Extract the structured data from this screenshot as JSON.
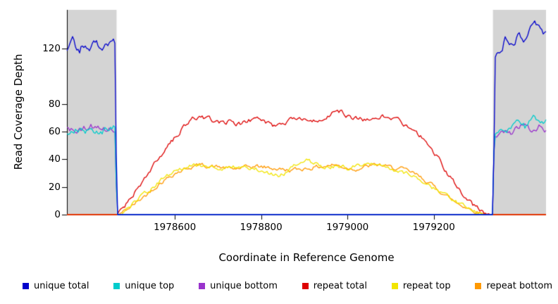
{
  "chart_data": {
    "type": "line",
    "title": "",
    "xlabel": "Coordinate in Reference Genome",
    "ylabel": "Read Coverage Depth",
    "xlim": [
      1978350,
      1979460
    ],
    "ylim": [
      0,
      148
    ],
    "xticks": [
      1978600,
      1978800,
      1979000,
      1979200
    ],
    "yticks": [
      0,
      20,
      40,
      60,
      80,
      120
    ],
    "grid": false,
    "legend_position": "bottom",
    "background": "#ffffff",
    "axis_color": "#000000",
    "shaded_regions": [
      {
        "x0": 1978350,
        "x1": 1978465,
        "color": "#d4d4d4"
      },
      {
        "x0": 1979337,
        "x1": 1979460,
        "color": "#d4d4d4"
      }
    ],
    "series": [
      {
        "name": "unique total",
        "color": "#0000cc",
        "noise": 3.0,
        "points": [
          [
            1978350,
            121
          ],
          [
            1978365,
            126
          ],
          [
            1978378,
            119
          ],
          [
            1978392,
            123
          ],
          [
            1978405,
            120
          ],
          [
            1978418,
            125
          ],
          [
            1978430,
            119
          ],
          [
            1978442,
            122
          ],
          [
            1978455,
            126
          ],
          [
            1978463,
            124
          ],
          [
            1978465,
            0
          ],
          [
            1979336,
            0
          ],
          [
            1979338,
            0
          ],
          [
            1979341,
            112
          ],
          [
            1979352,
            119
          ],
          [
            1979366,
            126
          ],
          [
            1979380,
            123
          ],
          [
            1979394,
            130
          ],
          [
            1979408,
            126
          ],
          [
            1979422,
            133
          ],
          [
            1979436,
            139
          ],
          [
            1979448,
            134
          ],
          [
            1979460,
            129
          ]
        ]
      },
      {
        "name": "unique top",
        "color": "#00cccc",
        "noise": 2.2,
        "points": [
          [
            1978350,
            59
          ],
          [
            1978375,
            62
          ],
          [
            1978400,
            60
          ],
          [
            1978425,
            58
          ],
          [
            1978448,
            63
          ],
          [
            1978463,
            65
          ],
          [
            1978465,
            0
          ],
          [
            1979336,
            0
          ],
          [
            1979340,
            59
          ],
          [
            1979358,
            64
          ],
          [
            1979376,
            61
          ],
          [
            1979394,
            67
          ],
          [
            1979412,
            63
          ],
          [
            1979430,
            69
          ],
          [
            1979446,
            65
          ],
          [
            1979460,
            67
          ]
        ]
      },
      {
        "name": "unique bottom",
        "color": "#9933cc",
        "noise": 2.2,
        "points": [
          [
            1978350,
            62
          ],
          [
            1978378,
            60
          ],
          [
            1978404,
            64
          ],
          [
            1978430,
            61
          ],
          [
            1978455,
            63
          ],
          [
            1978463,
            59
          ],
          [
            1978465,
            0
          ],
          [
            1979336,
            0
          ],
          [
            1979340,
            57
          ],
          [
            1979360,
            62
          ],
          [
            1979382,
            59
          ],
          [
            1979404,
            65
          ],
          [
            1979426,
            60
          ],
          [
            1979446,
            64
          ],
          [
            1979460,
            62
          ]
        ]
      },
      {
        "name": "repeat total",
        "color": "#dd0000",
        "noise": 1.6,
        "points": [
          [
            1978350,
            0
          ],
          [
            1978467,
            0
          ],
          [
            1978490,
            9
          ],
          [
            1978520,
            22
          ],
          [
            1978555,
            37
          ],
          [
            1978590,
            52
          ],
          [
            1978620,
            63
          ],
          [
            1978645,
            70
          ],
          [
            1978660,
            71
          ],
          [
            1978680,
            69
          ],
          [
            1978700,
            66
          ],
          [
            1978725,
            67
          ],
          [
            1978750,
            65
          ],
          [
            1978775,
            68
          ],
          [
            1978795,
            70
          ],
          [
            1978815,
            66
          ],
          [
            1978835,
            63
          ],
          [
            1978855,
            65
          ],
          [
            1978875,
            70
          ],
          [
            1978895,
            69
          ],
          [
            1978915,
            67
          ],
          [
            1978940,
            69
          ],
          [
            1978965,
            73
          ],
          [
            1978985,
            75
          ],
          [
            1979005,
            70
          ],
          [
            1979030,
            69
          ],
          [
            1979055,
            68
          ],
          [
            1979080,
            71
          ],
          [
            1979105,
            70
          ],
          [
            1979125,
            67
          ],
          [
            1979145,
            63
          ],
          [
            1979170,
            57
          ],
          [
            1979200,
            45
          ],
          [
            1979230,
            31
          ],
          [
            1979260,
            17
          ],
          [
            1979290,
            7
          ],
          [
            1979315,
            2
          ],
          [
            1979332,
            0
          ],
          [
            1979460,
            0
          ]
        ]
      },
      {
        "name": "repeat top",
        "color": "#f2e500",
        "noise": 1.4,
        "points": [
          [
            1978350,
            0
          ],
          [
            1978470,
            0
          ],
          [
            1978500,
            7
          ],
          [
            1978530,
            15
          ],
          [
            1978565,
            24
          ],
          [
            1978600,
            31
          ],
          [
            1978630,
            35
          ],
          [
            1978655,
            36
          ],
          [
            1978680,
            35
          ],
          [
            1978705,
            33
          ],
          [
            1978730,
            34
          ],
          [
            1978760,
            35
          ],
          [
            1978790,
            33
          ],
          [
            1978815,
            30
          ],
          [
            1978840,
            28
          ],
          [
            1978862,
            31
          ],
          [
            1978882,
            37
          ],
          [
            1978902,
            40
          ],
          [
            1978922,
            37
          ],
          [
            1978948,
            34
          ],
          [
            1978975,
            35
          ],
          [
            1979002,
            34
          ],
          [
            1979030,
            36
          ],
          [
            1979058,
            36
          ],
          [
            1979085,
            34
          ],
          [
            1979112,
            32
          ],
          [
            1979140,
            29
          ],
          [
            1979170,
            25
          ],
          [
            1979205,
            18
          ],
          [
            1979240,
            11
          ],
          [
            1979275,
            5
          ],
          [
            1979305,
            1
          ],
          [
            1979328,
            0
          ],
          [
            1979460,
            0
          ]
        ]
      },
      {
        "name": "repeat bottom",
        "color": "#ff9900",
        "noise": 1.4,
        "points": [
          [
            1978350,
            0
          ],
          [
            1978470,
            0
          ],
          [
            1978500,
            6
          ],
          [
            1978532,
            14
          ],
          [
            1978566,
            23
          ],
          [
            1978600,
            30
          ],
          [
            1978632,
            34
          ],
          [
            1978658,
            36
          ],
          [
            1978684,
            35
          ],
          [
            1978710,
            34
          ],
          [
            1978736,
            33
          ],
          [
            1978762,
            34
          ],
          [
            1978788,
            35
          ],
          [
            1978814,
            34
          ],
          [
            1978840,
            33
          ],
          [
            1978866,
            32
          ],
          [
            1978892,
            33
          ],
          [
            1978918,
            34
          ],
          [
            1978944,
            35
          ],
          [
            1978970,
            36
          ],
          [
            1978996,
            34
          ],
          [
            1979022,
            33
          ],
          [
            1979048,
            35
          ],
          [
            1979074,
            36
          ],
          [
            1979100,
            34
          ],
          [
            1979126,
            33
          ],
          [
            1979152,
            30
          ],
          [
            1979180,
            25
          ],
          [
            1979215,
            17
          ],
          [
            1979250,
            9
          ],
          [
            1979285,
            4
          ],
          [
            1979310,
            1
          ],
          [
            1979330,
            0
          ],
          [
            1979460,
            0
          ]
        ]
      }
    ]
  }
}
